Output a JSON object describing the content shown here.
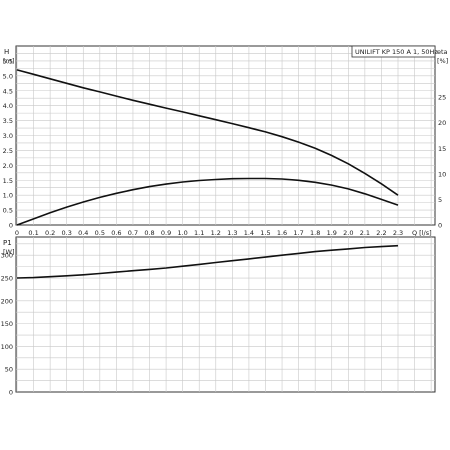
{
  "chart_data": [
    {
      "type": "line",
      "title": "UNILIFT KP 150 A 1, 50Hz",
      "xlabel": "Q [l/s]",
      "xlim": [
        0,
        2.3
      ],
      "x_ticks": [
        "0",
        "0.1",
        "0.2",
        "0.3",
        "0.4",
        "0.5",
        "0.6",
        "0.7",
        "0.8",
        "0.9",
        "1.0",
        "1.1",
        "1.2",
        "1.3",
        "1.4",
        "1.5",
        "1.6",
        "1.7",
        "1.8",
        "1.9",
        "2.0",
        "2.1",
        "2.2",
        "2.3"
      ],
      "ylabel": "H",
      "yunit": "[m]",
      "ylim": [
        0,
        6.0
      ],
      "y_ticks": [
        "0",
        "0.5",
        "1.0",
        "1.5",
        "2.0",
        "2.5",
        "3.0",
        "3.5",
        "4.0",
        "4.5",
        "5.0",
        "5.5"
      ],
      "y2label": "eta",
      "y2unit": "[%]",
      "y2lim": [
        0,
        35
      ],
      "y2_ticks": [
        "0",
        "5",
        "10",
        "15",
        "20",
        "25"
      ],
      "grid": true,
      "series": [
        {
          "axis": "left",
          "x": [
            0,
            0.1,
            0.2,
            0.3,
            0.4,
            0.5,
            0.6,
            0.7,
            0.8,
            0.9,
            1.0,
            1.1,
            1.2,
            1.3,
            1.4,
            1.5,
            1.6,
            1.7,
            1.8,
            1.9,
            2.0,
            2.1,
            2.2,
            2.3
          ],
          "values": [
            5.2,
            5.05,
            4.9,
            4.75,
            4.6,
            4.46,
            4.32,
            4.18,
            4.05,
            3.92,
            3.79,
            3.66,
            3.53,
            3.4,
            3.26,
            3.12,
            2.96,
            2.78,
            2.57,
            2.33,
            2.05,
            1.73,
            1.38,
            1.0
          ]
        },
        {
          "axis": "right",
          "x": [
            0,
            0.1,
            0.2,
            0.3,
            0.4,
            0.5,
            0.6,
            0.7,
            0.8,
            0.9,
            1.0,
            1.1,
            1.2,
            1.3,
            1.4,
            1.5,
            1.6,
            1.7,
            1.8,
            1.9,
            2.0,
            2.1,
            2.2,
            2.3
          ],
          "values": [
            0,
            1.2,
            2.4,
            3.5,
            4.5,
            5.4,
            6.2,
            6.9,
            7.5,
            8.0,
            8.4,
            8.7,
            8.9,
            9.05,
            9.1,
            9.1,
            9.0,
            8.75,
            8.35,
            7.8,
            7.05,
            6.1,
            5.0,
            3.9
          ]
        }
      ]
    },
    {
      "type": "line",
      "xlim": [
        0,
        2.3
      ],
      "ylabel": "P1",
      "yunit": "[W]",
      "ylim": [
        0,
        340
      ],
      "y_ticks": [
        "0",
        "50",
        "100",
        "150",
        "200",
        "250",
        "300"
      ],
      "grid": true,
      "series": [
        {
          "x": [
            0,
            0.1,
            0.2,
            0.3,
            0.4,
            0.5,
            0.6,
            0.7,
            0.8,
            0.9,
            1.0,
            1.1,
            1.2,
            1.3,
            1.4,
            1.5,
            1.6,
            1.7,
            1.8,
            1.9,
            2.0,
            2.1,
            2.2,
            2.3
          ],
          "values": [
            250,
            251,
            253,
            255,
            257,
            260,
            263,
            266,
            269,
            272,
            276,
            280,
            284,
            288,
            292,
            296,
            300,
            304,
            308,
            311,
            314,
            317,
            319,
            321
          ]
        }
      ]
    }
  ]
}
